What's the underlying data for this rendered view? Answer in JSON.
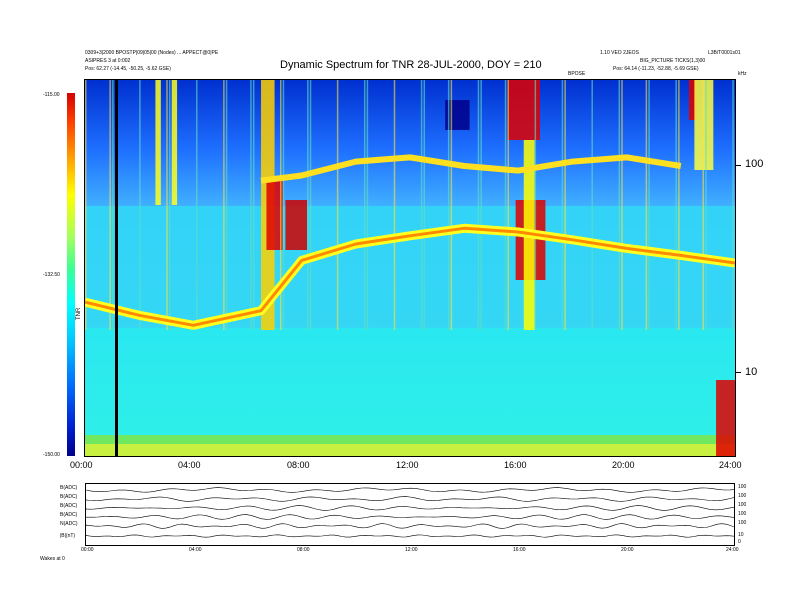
{
  "header": {
    "left_line1": "0309+3|2000 BPOSTP|09|05|00 (Nodes) ... APPECT@0|PE",
    "left_line2": "ASIPRES 3 at 0:002",
    "left_line3": "Pos:  62.27 (-14.45, -50.25, -5.62 GSE)",
    "right_line1": "1.10 VEO 2JEOS",
    "right_line1b": "L3B/T0001s01",
    "right_line2": "BIG_PICTURE TICKS(1,3)00",
    "right_line3": "Pos:  64.14 (-11.23, -52.88, -5.69 GSE)",
    "title": "Dynamic Spectrum for TNR 28-JUL-2000, DOY = 210",
    "top_marker": "BPOSE",
    "top_right_unit": "kHz",
    "colorbar_label": "TNR",
    "footer_label": "Wakes  at 0"
  },
  "chart_data": {
    "type": "heatmap",
    "title": "Dynamic Spectrum for TNR 28-JUL-2000, DOY = 210",
    "xlabel": "",
    "ylabel": "kHz",
    "x_ticks": [
      "00:00",
      "04:00",
      "08:00",
      "12:00",
      "16:00",
      "20:00",
      "24:00"
    ],
    "y_ticks_right": [
      "100",
      "10"
    ],
    "yscale": "log",
    "colorbar_ticks": [
      "-115.00",
      "-132.50",
      "-150.00"
    ],
    "colorbar_range": [
      -150,
      -115
    ],
    "grid": false,
    "features": [
      {
        "name": "plasma line",
        "kind": "yellow-green band",
        "times_h": [
          0,
          2,
          4,
          6.5,
          8,
          10,
          12,
          14,
          16,
          18,
          20,
          22,
          24
        ],
        "freq_khz": [
          22,
          19,
          17,
          20,
          35,
          42,
          46,
          50,
          48,
          44,
          40,
          37,
          34
        ]
      },
      {
        "name": "upper band",
        "kind": "yellow band",
        "times_h": [
          6.5,
          8,
          10,
          12,
          14,
          16,
          18,
          20,
          22
        ],
        "freq_khz": [
          85,
          90,
          105,
          110,
          100,
          95,
          105,
          110,
          100
        ]
      }
    ],
    "subpanels": [
      {
        "label": "B(ADC)",
        "ticks": [
          "100",
          "50"
        ]
      },
      {
        "label": "B(ADC)",
        "ticks": [
          "100",
          "50"
        ]
      },
      {
        "label": "B(ADC)",
        "ticks": [
          "100",
          "50"
        ]
      },
      {
        "label": "B(ADC)",
        "ticks": [
          "100",
          "50"
        ]
      },
      {
        "label": "N(ADC)",
        "ticks": [
          "100",
          "50"
        ]
      },
      {
        "label": "|B|(nT)",
        "ticks": [
          "10",
          "0"
        ]
      }
    ],
    "subpanel_x_ticks": [
      "00:00",
      "04:00",
      "08:00",
      "12:00",
      "16:00",
      "20:00",
      "24:00"
    ]
  },
  "colors": {
    "cold": "#1e7bff",
    "background": "#2fe6f0",
    "band": "#ffff00",
    "hot": "#e00000",
    "deep": "#00008a"
  }
}
